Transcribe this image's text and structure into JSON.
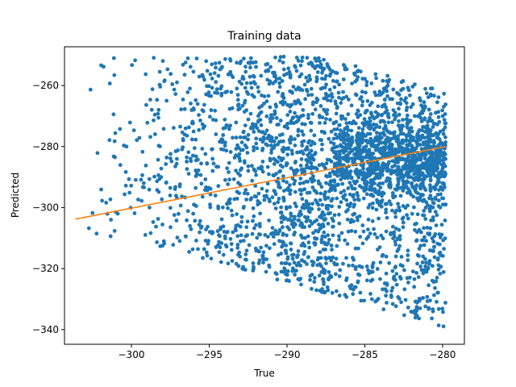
{
  "chart_data": {
    "type": "scatter",
    "title": "Training data",
    "xlabel": "True",
    "ylabel": "Predicted",
    "xlim": [
      -304.3,
      -278.6
    ],
    "ylim": [
      -344.8,
      -247.3
    ],
    "xticks": [
      -300,
      -295,
      -290,
      -285,
      -280
    ],
    "yticks": [
      -340,
      -320,
      -300,
      -280,
      -260
    ],
    "grid": false,
    "legend": "none",
    "colors": {
      "points": "#1f77b4",
      "fit": "#ff7f0e",
      "axes": "#000000"
    },
    "series": [
      {
        "kind": "scatter",
        "point_count": 3000,
        "x_range": [
          -303.6,
          -279.8
        ],
        "y_range": [
          -340.0,
          -250.5
        ],
        "density_note": "sparse on left, very dense between -286 and -280"
      },
      {
        "kind": "line",
        "x": [
          -303.6,
          -279.8
        ],
        "y": [
          -303.8,
          -280.0
        ]
      }
    ]
  }
}
